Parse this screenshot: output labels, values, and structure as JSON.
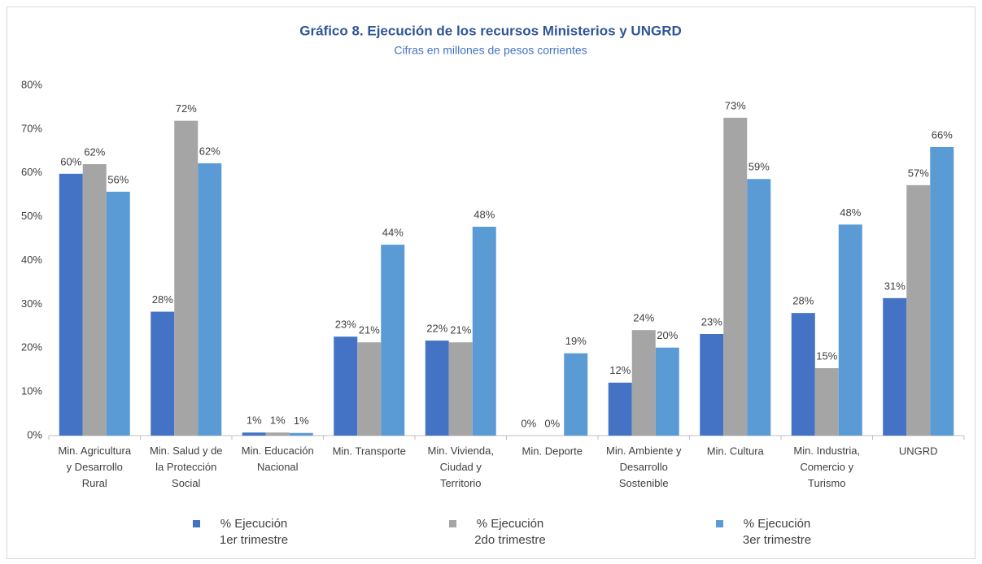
{
  "chart_data": {
    "type": "bar",
    "title": "Gráfico 8. Ejecución de los recursos Ministerios y UNGRD",
    "subtitle": "Cifras en millones de pesos corrientes",
    "categories": [
      "Min. Agricultura\ny Desarrollo\nRural",
      "Min. Salud y de\nla Protección\nSocial",
      "Min. Educación\nNacional",
      "Min. Transporte",
      "Min. Vivienda,\nCiudad y\nTerritorio",
      "Min. Deporte",
      "Min. Ambiente y\nDesarrollo\nSostenible",
      "Min. Cultura",
      "Min. Industria,\nComercio y\nTurismo",
      "UNGRD"
    ],
    "series": [
      {
        "name": "% Ejecución\n1er trimestre",
        "color": "#4472c4",
        "values": [
          59.8,
          28.3,
          0.7,
          22.6,
          21.7,
          0,
          12.1,
          23.2,
          28.0,
          31.4
        ],
        "value_labels": [
          "60%",
          "28%",
          "1%",
          "23%",
          "22%",
          "0%",
          "12%",
          "23%",
          "28%",
          "31%"
        ]
      },
      {
        "name": "% Ejecución\n2do trimestre",
        "color": "#a5a5a5",
        "values": [
          62.0,
          71.9,
          0.7,
          21.3,
          21.3,
          0,
          24.1,
          72.6,
          15.4,
          57.2
        ],
        "value_labels": [
          "62%",
          "72%",
          "1%",
          "21%",
          "21%",
          "0%",
          "24%",
          "73%",
          "15%",
          "57%"
        ]
      },
      {
        "name": "% Ejecución\n3er trimestre",
        "color": "#5b9bd5",
        "values": [
          55.7,
          62.2,
          0.6,
          43.6,
          47.7,
          18.8,
          20.1,
          58.6,
          48.2,
          65.9
        ],
        "value_labels": [
          "56%",
          "62%",
          "1%",
          "44%",
          "48%",
          "19%",
          "20%",
          "59%",
          "48%",
          "66%"
        ]
      }
    ],
    "ylim": [
      0,
      80
    ],
    "yticks": [
      {
        "value": 0,
        "label": "0%"
      },
      {
        "value": 10,
        "label": "10%"
      },
      {
        "value": 20,
        "label": "20%"
      },
      {
        "value": 30,
        "label": "30%"
      },
      {
        "value": 40,
        "label": "40%"
      },
      {
        "value": 50,
        "label": "50%"
      },
      {
        "value": 60,
        "label": "60%"
      },
      {
        "value": 70,
        "label": "70%"
      },
      {
        "value": 80,
        "label": "80%"
      }
    ],
    "grid": false,
    "legend": "bottom"
  }
}
